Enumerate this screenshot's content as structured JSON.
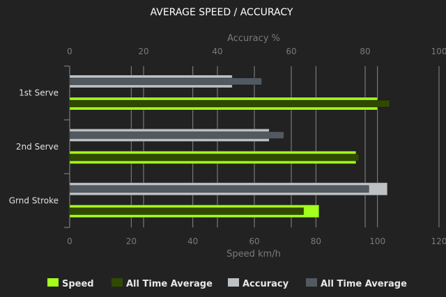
{
  "chart_data": {
    "type": "bar",
    "orientation": "horizontal",
    "title": "AVERAGE SPEED / ACCURACY",
    "categories": [
      "1st Serve",
      "2nd Serve",
      "Grnd Stroke"
    ],
    "top_axis": {
      "label": "Accuracy %",
      "range": [
        0,
        100
      ],
      "ticks": [
        0,
        20,
        40,
        60,
        80,
        100
      ]
    },
    "bottom_axis": {
      "label": "Speed km/h",
      "range": [
        0,
        120
      ],
      "ticks": [
        0,
        20,
        40,
        60,
        80,
        100,
        120
      ]
    },
    "grid": true,
    "legend_position": "bottom",
    "series": [
      {
        "name": "Speed",
        "axis": "speed",
        "color": "#a4ff1c",
        "values": [
          100,
          93,
          81
        ]
      },
      {
        "name": "All Time Average",
        "axis": "speed",
        "color": "#2f4a00",
        "values": [
          104,
          94,
          76
        ]
      },
      {
        "name": "Accuracy",
        "axis": "accuracy",
        "color": "#bdc1c4",
        "values": [
          44,
          54,
          86
        ]
      },
      {
        "name": "All Time Average",
        "axis": "accuracy",
        "color": "#535961",
        "values": [
          52,
          58,
          81
        ]
      }
    ]
  }
}
